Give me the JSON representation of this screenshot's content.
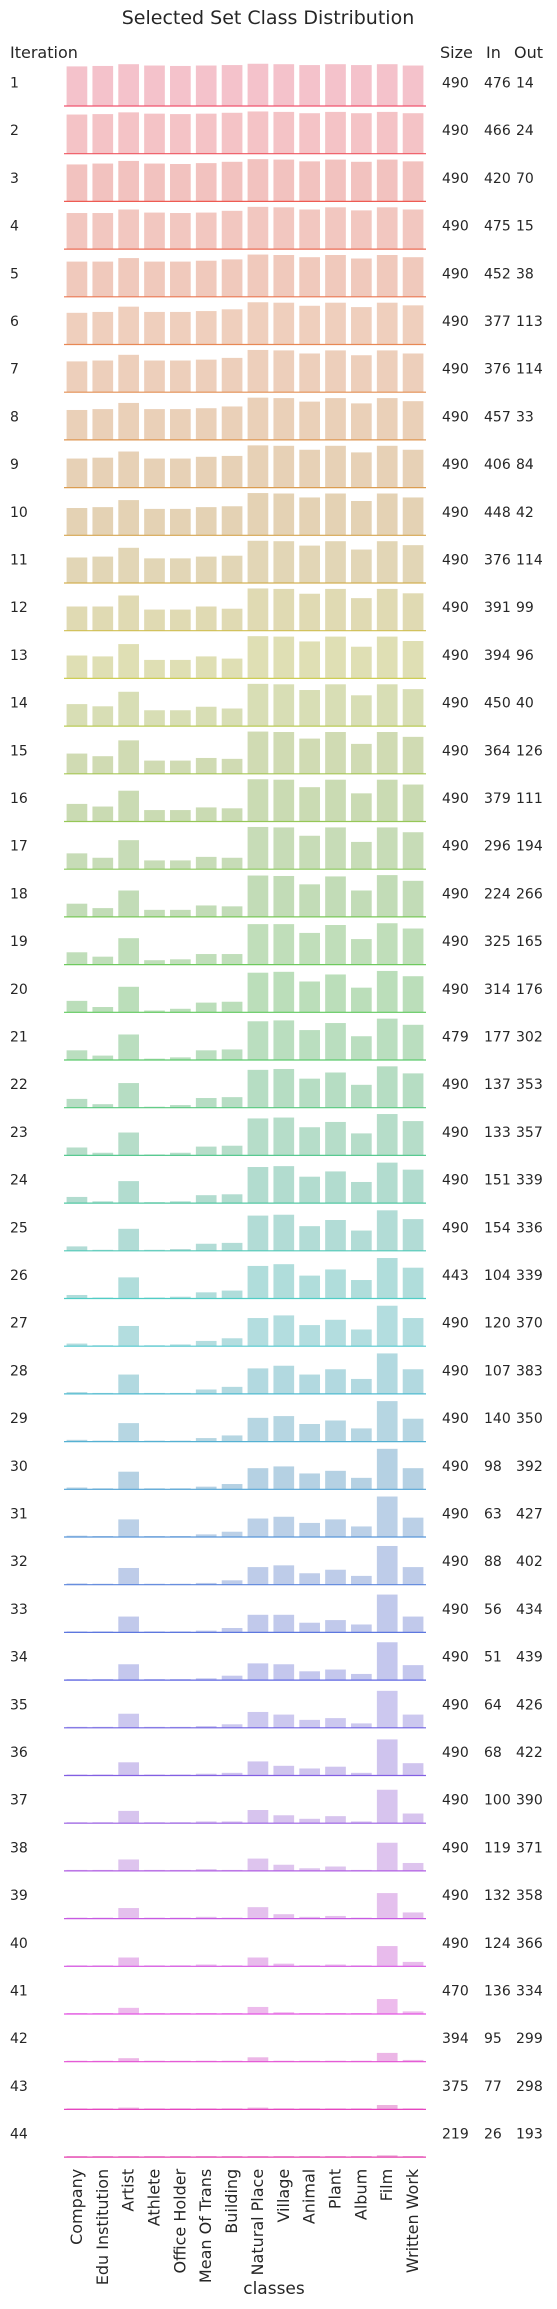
{
  "chart_data": {
    "type": "bar",
    "title": "Selected Set Class Distribution",
    "xlabel": "classes",
    "row_label_header": "Iteration",
    "column_headers": [
      "Size",
      "In",
      "Out"
    ],
    "categories": [
      "Company",
      "Edu Institution",
      "Artist",
      "Athlete",
      "Office Holder",
      "Mean Of Trans",
      "Building",
      "Natural Place",
      "Village",
      "Animal",
      "Plant",
      "Album",
      "Film",
      "Written Work"
    ],
    "iterations": [
      1,
      2,
      3,
      4,
      5,
      6,
      7,
      8,
      9,
      10,
      11,
      12,
      13,
      14,
      15,
      16,
      17,
      18,
      19,
      20,
      21,
      22,
      23,
      24,
      25,
      26,
      27,
      28,
      29,
      30,
      31,
      32,
      33,
      34,
      35,
      36,
      37,
      38,
      39,
      40,
      41,
      42,
      43,
      44
    ],
    "size": [
      490,
      490,
      490,
      490,
      490,
      490,
      490,
      490,
      490,
      490,
      490,
      490,
      490,
      490,
      490,
      490,
      490,
      490,
      490,
      490,
      479,
      490,
      490,
      490,
      490,
      443,
      490,
      490,
      490,
      490,
      490,
      490,
      490,
      490,
      490,
      490,
      490,
      490,
      490,
      490,
      470,
      394,
      375,
      219
    ],
    "in": [
      476,
      466,
      420,
      475,
      452,
      377,
      376,
      457,
      406,
      448,
      376,
      391,
      394,
      450,
      364,
      379,
      296,
      224,
      325,
      314,
      177,
      137,
      133,
      151,
      154,
      104,
      120,
      107,
      140,
      98,
      63,
      88,
      56,
      51,
      64,
      68,
      100,
      119,
      132,
      124,
      136,
      95,
      77,
      26
    ],
    "out": [
      14,
      24,
      70,
      15,
      38,
      113,
      114,
      33,
      84,
      42,
      114,
      99,
      96,
      40,
      126,
      111,
      194,
      266,
      165,
      176,
      302,
      353,
      357,
      339,
      336,
      339,
      370,
      383,
      350,
      392,
      427,
      402,
      434,
      439,
      426,
      422,
      390,
      371,
      358,
      366,
      334,
      299,
      298,
      193
    ],
    "bar_levels": [
      [
        0.9,
        0.91,
        0.95,
        0.92,
        0.91,
        0.92,
        0.93,
        0.96,
        0.95,
        0.93,
        0.95,
        0.93,
        0.95,
        0.92
      ],
      [
        0.89,
        0.9,
        0.94,
        0.91,
        0.9,
        0.91,
        0.93,
        0.96,
        0.95,
        0.92,
        0.95,
        0.92,
        0.95,
        0.92
      ],
      [
        0.84,
        0.86,
        0.92,
        0.86,
        0.85,
        0.87,
        0.9,
        0.96,
        0.95,
        0.91,
        0.95,
        0.9,
        0.95,
        0.91
      ],
      [
        0.82,
        0.82,
        0.9,
        0.83,
        0.82,
        0.83,
        0.87,
        0.96,
        0.95,
        0.9,
        0.95,
        0.88,
        0.95,
        0.9
      ],
      [
        0.8,
        0.8,
        0.88,
        0.8,
        0.8,
        0.82,
        0.85,
        0.96,
        0.95,
        0.9,
        0.95,
        0.87,
        0.95,
        0.9
      ],
      [
        0.72,
        0.74,
        0.86,
        0.74,
        0.74,
        0.76,
        0.8,
        0.96,
        0.95,
        0.88,
        0.95,
        0.85,
        0.95,
        0.89
      ],
      [
        0.7,
        0.72,
        0.85,
        0.72,
        0.72,
        0.74,
        0.78,
        0.96,
        0.95,
        0.88,
        0.95,
        0.84,
        0.95,
        0.88
      ],
      [
        0.68,
        0.7,
        0.84,
        0.7,
        0.7,
        0.72,
        0.76,
        0.96,
        0.95,
        0.87,
        0.95,
        0.83,
        0.95,
        0.88
      ],
      [
        0.66,
        0.68,
        0.82,
        0.66,
        0.66,
        0.7,
        0.72,
        0.96,
        0.95,
        0.86,
        0.95,
        0.8,
        0.95,
        0.86
      ],
      [
        0.62,
        0.64,
        0.8,
        0.6,
        0.6,
        0.64,
        0.66,
        0.96,
        0.95,
        0.86,
        0.95,
        0.78,
        0.95,
        0.86
      ],
      [
        0.58,
        0.6,
        0.8,
        0.56,
        0.56,
        0.6,
        0.62,
        0.96,
        0.95,
        0.85,
        0.95,
        0.76,
        0.95,
        0.86
      ],
      [
        0.55,
        0.55,
        0.8,
        0.48,
        0.48,
        0.55,
        0.5,
        0.96,
        0.95,
        0.84,
        0.95,
        0.74,
        0.95,
        0.85
      ],
      [
        0.52,
        0.5,
        0.78,
        0.42,
        0.42,
        0.5,
        0.45,
        0.96,
        0.95,
        0.84,
        0.95,
        0.72,
        0.95,
        0.85
      ],
      [
        0.5,
        0.45,
        0.78,
        0.36,
        0.36,
        0.44,
        0.4,
        0.96,
        0.95,
        0.82,
        0.95,
        0.7,
        0.95,
        0.84
      ],
      [
        0.46,
        0.4,
        0.76,
        0.3,
        0.3,
        0.36,
        0.34,
        0.96,
        0.95,
        0.8,
        0.95,
        0.68,
        0.95,
        0.84
      ],
      [
        0.4,
        0.34,
        0.7,
        0.26,
        0.26,
        0.32,
        0.3,
        0.96,
        0.95,
        0.78,
        0.95,
        0.64,
        0.95,
        0.84
      ],
      [
        0.36,
        0.26,
        0.66,
        0.2,
        0.2,
        0.28,
        0.26,
        0.96,
        0.95,
        0.76,
        0.95,
        0.62,
        0.95,
        0.84
      ],
      [
        0.3,
        0.2,
        0.6,
        0.16,
        0.16,
        0.26,
        0.24,
        0.94,
        0.93,
        0.74,
        0.92,
        0.6,
        0.95,
        0.82
      ],
      [
        0.28,
        0.18,
        0.6,
        0.1,
        0.12,
        0.24,
        0.24,
        0.92,
        0.92,
        0.72,
        0.9,
        0.58,
        0.94,
        0.82
      ],
      [
        0.26,
        0.12,
        0.58,
        0.04,
        0.08,
        0.22,
        0.24,
        0.9,
        0.92,
        0.7,
        0.86,
        0.56,
        0.94,
        0.82
      ],
      [
        0.22,
        0.1,
        0.58,
        0.03,
        0.06,
        0.22,
        0.24,
        0.88,
        0.9,
        0.68,
        0.84,
        0.54,
        0.94,
        0.8
      ],
      [
        0.2,
        0.08,
        0.56,
        0.02,
        0.06,
        0.22,
        0.24,
        0.86,
        0.88,
        0.66,
        0.8,
        0.52,
        0.94,
        0.78
      ],
      [
        0.18,
        0.06,
        0.52,
        0.02,
        0.06,
        0.2,
        0.22,
        0.84,
        0.86,
        0.64,
        0.76,
        0.5,
        0.94,
        0.78
      ],
      [
        0.14,
        0.04,
        0.5,
        0.02,
        0.04,
        0.18,
        0.2,
        0.82,
        0.84,
        0.6,
        0.72,
        0.48,
        0.92,
        0.76
      ],
      [
        0.1,
        0.02,
        0.5,
        0.02,
        0.04,
        0.16,
        0.18,
        0.8,
        0.82,
        0.56,
        0.7,
        0.46,
        0.92,
        0.72
      ],
      [
        0.08,
        0.02,
        0.48,
        0.02,
        0.04,
        0.14,
        0.18,
        0.74,
        0.78,
        0.52,
        0.66,
        0.42,
        0.92,
        0.7
      ],
      [
        0.06,
        0.02,
        0.46,
        0.02,
        0.04,
        0.12,
        0.18,
        0.64,
        0.7,
        0.48,
        0.6,
        0.38,
        0.92,
        0.64
      ],
      [
        0.04,
        0.02,
        0.44,
        0.02,
        0.02,
        0.1,
        0.16,
        0.58,
        0.64,
        0.44,
        0.56,
        0.34,
        0.92,
        0.56
      ],
      [
        0.04,
        0.02,
        0.42,
        0.02,
        0.02,
        0.08,
        0.14,
        0.54,
        0.58,
        0.4,
        0.48,
        0.3,
        0.92,
        0.52
      ],
      [
        0.04,
        0.02,
        0.4,
        0.02,
        0.02,
        0.06,
        0.12,
        0.48,
        0.52,
        0.36,
        0.42,
        0.26,
        0.92,
        0.48
      ],
      [
        0.03,
        0.02,
        0.4,
        0.02,
        0.02,
        0.06,
        0.12,
        0.42,
        0.46,
        0.32,
        0.4,
        0.24,
        0.92,
        0.44
      ],
      [
        0.03,
        0.02,
        0.38,
        0.02,
        0.02,
        0.04,
        0.1,
        0.4,
        0.44,
        0.26,
        0.34,
        0.2,
        0.88,
        0.4
      ],
      [
        0.02,
        0.02,
        0.36,
        0.02,
        0.02,
        0.04,
        0.1,
        0.4,
        0.4,
        0.22,
        0.28,
        0.18,
        0.86,
        0.36
      ],
      [
        0.02,
        0.02,
        0.36,
        0.02,
        0.02,
        0.04,
        0.1,
        0.38,
        0.36,
        0.2,
        0.24,
        0.14,
        0.86,
        0.34
      ],
      [
        0.02,
        0.02,
        0.32,
        0.02,
        0.02,
        0.04,
        0.08,
        0.36,
        0.3,
        0.18,
        0.22,
        0.1,
        0.84,
        0.3
      ],
      [
        0.02,
        0.02,
        0.3,
        0.02,
        0.02,
        0.04,
        0.06,
        0.32,
        0.22,
        0.16,
        0.2,
        0.06,
        0.82,
        0.28
      ],
      [
        0.02,
        0.02,
        0.28,
        0.02,
        0.02,
        0.04,
        0.04,
        0.3,
        0.18,
        0.1,
        0.16,
        0.04,
        0.76,
        0.22
      ],
      [
        0.02,
        0.02,
        0.26,
        0.02,
        0.02,
        0.04,
        0.02,
        0.28,
        0.14,
        0.06,
        0.1,
        0.02,
        0.64,
        0.18
      ],
      [
        0.02,
        0.02,
        0.24,
        0.02,
        0.02,
        0.04,
        0.02,
        0.26,
        0.1,
        0.04,
        0.06,
        0.02,
        0.58,
        0.14
      ],
      [
        0.02,
        0.02,
        0.2,
        0.02,
        0.02,
        0.04,
        0.02,
        0.2,
        0.06,
        0.02,
        0.04,
        0.02,
        0.46,
        0.1
      ],
      [
        0.02,
        0.02,
        0.14,
        0.02,
        0.02,
        0.02,
        0.02,
        0.16,
        0.04,
        0.02,
        0.02,
        0.02,
        0.34,
        0.06
      ],
      [
        0.02,
        0.02,
        0.08,
        0.02,
        0.02,
        0.02,
        0.02,
        0.1,
        0.02,
        0.02,
        0.02,
        0.02,
        0.2,
        0.04
      ],
      [
        0.02,
        0.02,
        0.04,
        0.02,
        0.02,
        0.02,
        0.02,
        0.04,
        0.02,
        0.02,
        0.02,
        0.02,
        0.1,
        0.02
      ],
      [
        0.02,
        0.02,
        0.02,
        0.02,
        0.02,
        0.02,
        0.02,
        0.02,
        0.02,
        0.02,
        0.02,
        0.02,
        0.04,
        0.02
      ]
    ],
    "legend": "none",
    "grid": false,
    "colors": {
      "row_palette": "husl-gradient",
      "start": "#f3a6b5",
      "end": "#e06fb7"
    }
  }
}
